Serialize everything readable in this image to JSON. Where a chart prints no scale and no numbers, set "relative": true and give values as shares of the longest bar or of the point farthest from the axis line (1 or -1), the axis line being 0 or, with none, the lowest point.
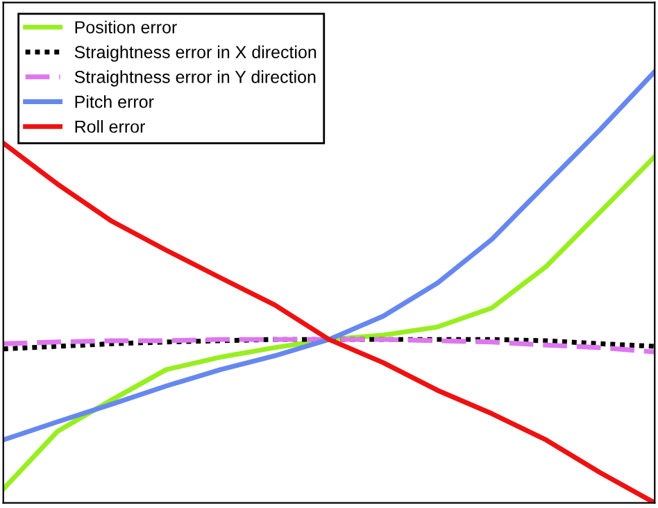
{
  "chart_data": {
    "type": "line",
    "relative": true,
    "legend": "top left",
    "grid": false,
    "categories": [
      null,
      null,
      null,
      null,
      null,
      null,
      null,
      null,
      null,
      null,
      null,
      null,
      null
    ],
    "series": [
      {
        "name": "Position error",
        "color": "#99ee22",
        "line_style": "solid",
        "values": [
          0.032,
          0.166,
          0.239,
          0.309,
          0.338,
          0.36,
          0.379,
          0.389,
          0.408,
          0.452,
          0.548,
          0.675,
          0.803
        ]
      },
      {
        "name": "Straightness error in X direction",
        "color": "#000000",
        "line_style": "dotted",
        "values": [
          0.357,
          0.363,
          0.369,
          0.373,
          0.376,
          0.379,
          0.379,
          0.379,
          0.379,
          0.379,
          0.376,
          0.369,
          0.363
        ]
      },
      {
        "name": "Straightness error in Y direction",
        "color": "#dd77ee",
        "line_style": "dashed",
        "values": [
          0.369,
          0.373,
          0.376,
          0.376,
          0.379,
          0.379,
          0.379,
          0.379,
          0.376,
          0.373,
          0.366,
          0.36,
          0.35
        ]
      },
      {
        "name": "Pitch error",
        "color": "#6688ee",
        "line_style": "solid",
        "values": [
          0.146,
          0.188,
          0.229,
          0.271,
          0.309,
          0.341,
          0.379,
          0.433,
          0.51,
          0.611,
          0.739,
          0.866,
          1
        ]
      },
      {
        "name": "Roll error",
        "color": "#ee1111",
        "line_style": "solid",
        "values": [
          0.834,
          0.739,
          0.653,
          0.586,
          0.522,
          0.459,
          0.379,
          0.325,
          0.261,
          0.207,
          0.146,
          0.07,
          0
        ]
      }
    ]
  }
}
